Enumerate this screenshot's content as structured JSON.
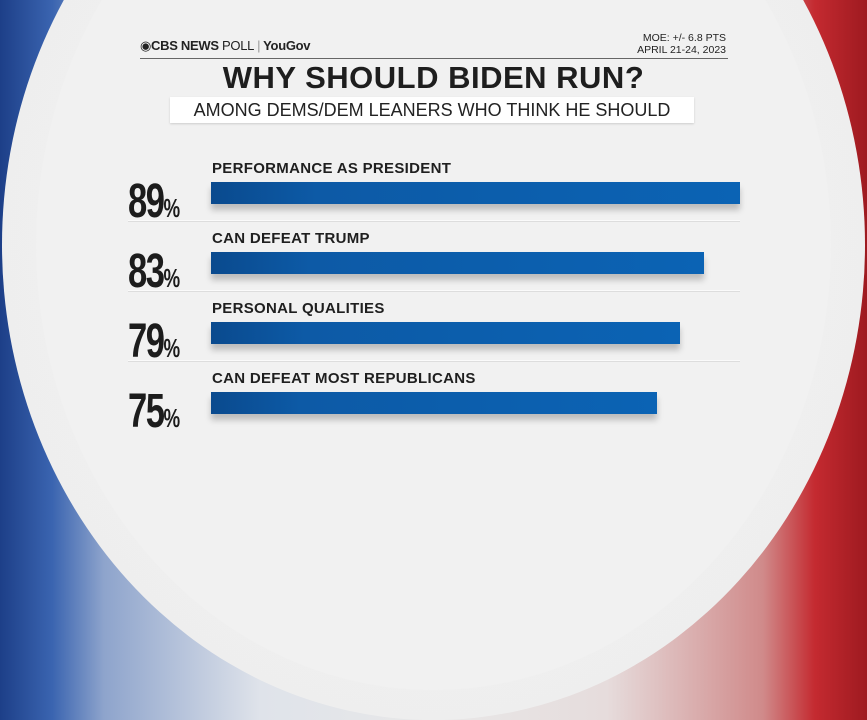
{
  "header": {
    "logo_cbs": "CBS NEWS",
    "logo_poll": "POLL",
    "logo_partner": "YouGov",
    "moe": "MOE: +/- 6.8 PTS",
    "dates": "APRIL 21-24, 2023"
  },
  "colors": {
    "bar": "#0b5fae",
    "left_ring": "#1d3f88",
    "right_ring": "#c42a30"
  },
  "chart_data": {
    "type": "bar",
    "orientation": "horizontal",
    "title": "WHY SHOULD BIDEN RUN?",
    "subtitle": "AMONG DEMS/DEM LEANERS WHO THINK HE SHOULD",
    "categories": [
      "PERFORMANCE AS PRESIDENT",
      "CAN DEFEAT TRUMP",
      "PERSONAL QUALITIES",
      "CAN DEFEAT MOST REPUBLICANS"
    ],
    "values": [
      89,
      83,
      79,
      75
    ],
    "value_labels": [
      "89",
      "83",
      "79",
      "75"
    ],
    "unit": "%",
    "xlim": [
      0,
      100
    ]
  }
}
